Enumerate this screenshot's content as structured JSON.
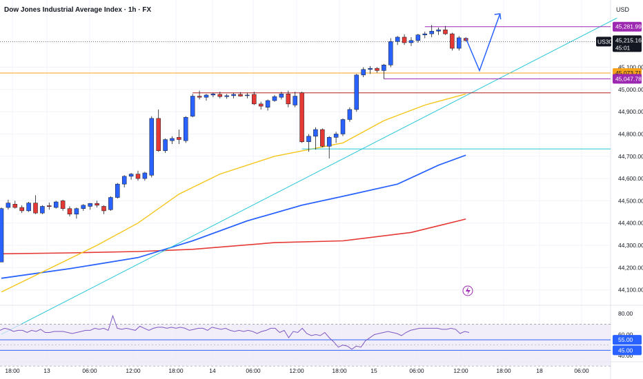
{
  "header": {
    "title": "Dow Jones Industrial Average Index · 1h · FX",
    "currency": "USD"
  },
  "chart_data": {
    "type": "candlestick",
    "y_ticks": [
      "45,100.00",
      "45,000.00",
      "44,900.00",
      "44,800.00",
      "44,700.00",
      "44,600.00",
      "44,500.00",
      "44,400.00",
      "44,300.00",
      "44,200.00",
      "44,100.00"
    ],
    "ylim": [
      44040,
      45340
    ],
    "x_ticks": [
      "18:00",
      "13",
      "06:00",
      "12:00",
      "18:00",
      "14",
      "06:00",
      "12:00",
      "18:00",
      "15",
      "06:00",
      "12:00",
      "18:00",
      "18",
      "06:00"
    ],
    "candles": [
      {
        "o": 44225,
        "h": 44470,
        "l": 44225,
        "c": 44465
      },
      {
        "o": 44470,
        "h": 44505,
        "l": 44460,
        "c": 44490
      },
      {
        "o": 44485,
        "h": 44500,
        "l": 44465,
        "c": 44470
      },
      {
        "o": 44470,
        "h": 44480,
        "l": 44445,
        "c": 44455
      },
      {
        "o": 44455,
        "h": 44495,
        "l": 44450,
        "c": 44490
      },
      {
        "o": 44490,
        "h": 44525,
        "l": 44440,
        "c": 44445
      },
      {
        "o": 44445,
        "h": 44480,
        "l": 44440,
        "c": 44475
      },
      {
        "o": 44478,
        "h": 44492,
        "l": 44460,
        "c": 44474
      },
      {
        "o": 44470,
        "h": 44500,
        "l": 44465,
        "c": 44495
      },
      {
        "o": 44500,
        "h": 44505,
        "l": 44455,
        "c": 44465
      },
      {
        "o": 44465,
        "h": 44475,
        "l": 44430,
        "c": 44440
      },
      {
        "o": 44440,
        "h": 44470,
        "l": 44420,
        "c": 44465
      },
      {
        "o": 44465,
        "h": 44485,
        "l": 44455,
        "c": 44480
      },
      {
        "o": 44475,
        "h": 44490,
        "l": 44460,
        "c": 44488
      },
      {
        "o": 44488,
        "h": 44500,
        "l": 44470,
        "c": 44480
      },
      {
        "o": 44475,
        "h": 44480,
        "l": 44440,
        "c": 44455
      },
      {
        "o": 44460,
        "h": 44520,
        "l": 44455,
        "c": 44515
      },
      {
        "o": 44515,
        "h": 44580,
        "l": 44510,
        "c": 44575
      },
      {
        "o": 44575,
        "h": 44615,
        "l": 44560,
        "c": 44610
      },
      {
        "o": 44610,
        "h": 44625,
        "l": 44595,
        "c": 44620
      },
      {
        "o": 44620,
        "h": 44635,
        "l": 44590,
        "c": 44600
      },
      {
        "o": 44600,
        "h": 44630,
        "l": 44590,
        "c": 44625
      },
      {
        "o": 44615,
        "h": 44880,
        "l": 44605,
        "c": 44870
      },
      {
        "o": 44870,
        "h": 44910,
        "l": 44720,
        "c": 44725
      },
      {
        "o": 44725,
        "h": 44780,
        "l": 44715,
        "c": 44775
      },
      {
        "o": 44770,
        "h": 44790,
        "l": 44755,
        "c": 44780
      },
      {
        "o": 44785,
        "h": 44820,
        "l": 44755,
        "c": 44775
      },
      {
        "o": 44770,
        "h": 44880,
        "l": 44760,
        "c": 44875
      },
      {
        "o": 44880,
        "h": 44980,
        "l": 44875,
        "c": 44970
      },
      {
        "o": 44970,
        "h": 44995,
        "l": 44955,
        "c": 44965
      },
      {
        "o": 44965,
        "h": 44980,
        "l": 44950,
        "c": 44975
      },
      {
        "o": 44975,
        "h": 44985,
        "l": 44965,
        "c": 44980
      },
      {
        "o": 44978,
        "h": 44990,
        "l": 44960,
        "c": 44968
      },
      {
        "o": 44968,
        "h": 44980,
        "l": 44958,
        "c": 44972
      },
      {
        "o": 44972,
        "h": 44985,
        "l": 44960,
        "c": 44978
      },
      {
        "o": 44978,
        "h": 44988,
        "l": 44968,
        "c": 44970
      },
      {
        "o": 44975,
        "h": 44985,
        "l": 44960,
        "c": 44975
      },
      {
        "o": 44978,
        "h": 44990,
        "l": 44930,
        "c": 44935
      },
      {
        "o": 44935,
        "h": 44945,
        "l": 44910,
        "c": 44925
      },
      {
        "o": 44920,
        "h": 44955,
        "l": 44905,
        "c": 44950
      },
      {
        "o": 44950,
        "h": 44975,
        "l": 44945,
        "c": 44968
      },
      {
        "o": 44965,
        "h": 44990,
        "l": 44955,
        "c": 44980
      },
      {
        "o": 44980,
        "h": 44995,
        "l": 44920,
        "c": 44935
      },
      {
        "o": 44930,
        "h": 44990,
        "l": 44920,
        "c": 44970
      },
      {
        "o": 44985,
        "h": 44990,
        "l": 44760,
        "c": 44765
      },
      {
        "o": 44765,
        "h": 44800,
        "l": 44720,
        "c": 44790
      },
      {
        "o": 44790,
        "h": 44830,
        "l": 44730,
        "c": 44820
      },
      {
        "o": 44820,
        "h": 44825,
        "l": 44740,
        "c": 44745
      },
      {
        "o": 44745,
        "h": 44790,
        "l": 44690,
        "c": 44785
      },
      {
        "o": 44785,
        "h": 44810,
        "l": 44760,
        "c": 44800
      },
      {
        "o": 44800,
        "h": 44870,
        "l": 44790,
        "c": 44865
      },
      {
        "o": 44865,
        "h": 44920,
        "l": 44855,
        "c": 44910
      },
      {
        "o": 44910,
        "h": 45070,
        "l": 44900,
        "c": 45065
      },
      {
        "o": 45065,
        "h": 45100,
        "l": 45055,
        "c": 45090
      },
      {
        "o": 45090,
        "h": 45105,
        "l": 45070,
        "c": 45095
      },
      {
        "o": 45095,
        "h": 45100,
        "l": 45075,
        "c": 45085
      },
      {
        "o": 45085,
        "h": 45115,
        "l": 45048,
        "c": 45110
      },
      {
        "o": 45110,
        "h": 45230,
        "l": 45100,
        "c": 45215
      },
      {
        "o": 45215,
        "h": 45240,
        "l": 45200,
        "c": 45235
      },
      {
        "o": 45235,
        "h": 45248,
        "l": 45200,
        "c": 45210
      },
      {
        "o": 45210,
        "h": 45235,
        "l": 45195,
        "c": 45220
      },
      {
        "o": 45220,
        "h": 45250,
        "l": 45210,
        "c": 45245
      },
      {
        "o": 45245,
        "h": 45260,
        "l": 45230,
        "c": 45250
      },
      {
        "o": 45250,
        "h": 45290,
        "l": 45235,
        "c": 45262
      },
      {
        "o": 45262,
        "h": 45278,
        "l": 45245,
        "c": 45268
      },
      {
        "o": 45268,
        "h": 45285,
        "l": 45245,
        "c": 45250
      },
      {
        "o": 45250,
        "h": 45255,
        "l": 45175,
        "c": 45185
      },
      {
        "o": 45185,
        "h": 45240,
        "l": 45175,
        "c": 45232
      },
      {
        "o": 45230,
        "h": 45235,
        "l": 45215,
        "c": 45220
      }
    ],
    "ma_red": [
      [
        0,
        44262
      ],
      [
        10,
        44266
      ],
      [
        20,
        44272
      ],
      [
        28,
        44282
      ],
      [
        40,
        44312
      ],
      [
        50,
        44320
      ],
      [
        60,
        44358
      ],
      [
        68,
        44418
      ]
    ],
    "ma_blue": [
      [
        0,
        44152
      ],
      [
        10,
        44195
      ],
      [
        20,
        44245
      ],
      [
        28,
        44320
      ],
      [
        36,
        44410
      ],
      [
        44,
        44480
      ],
      [
        50,
        44520
      ],
      [
        58,
        44575
      ],
      [
        64,
        44660
      ],
      [
        68,
        44705
      ]
    ],
    "ma_yellow": [
      [
        0,
        44090
      ],
      [
        6,
        44180
      ],
      [
        14,
        44300
      ],
      [
        20,
        44400
      ],
      [
        26,
        44530
      ],
      [
        32,
        44620
      ],
      [
        40,
        44700
      ],
      [
        45,
        44730
      ],
      [
        50,
        44760
      ],
      [
        56,
        44860
      ],
      [
        62,
        44930
      ],
      [
        68,
        44980
      ]
    ],
    "trendline": {
      "from": [
        0,
        43900
      ],
      "to": [
        78,
        45290
      ]
    },
    "h_lines": [
      {
        "value": 45281.99,
        "from": 62,
        "to": 78,
        "color": "#9c27b0"
      },
      {
        "value": 45073.71,
        "from": -2,
        "to": 78,
        "color": "#f7a21b"
      },
      {
        "value": 45047.78,
        "from": 56,
        "to": 78,
        "color": "#9c27b0"
      },
      {
        "value": 44985,
        "from": 28,
        "to": 78,
        "color": "#b71c1c"
      },
      {
        "value": 44733,
        "from": 44,
        "to": 72,
        "color": "#26c6da"
      }
    ],
    "price_labels": [
      {
        "text": "45,281.99",
        "value": 45281.99,
        "bg": "#9c27b0",
        "fg": "#ffffff"
      },
      {
        "text": "45,215.16",
        "value": 45215.16,
        "sub": "45:01",
        "bg": "#131722",
        "fg": "#ffffff",
        "symbol": "US30"
      },
      {
        "text": "45,073.71",
        "value": 45073.71,
        "bg": "#f7a21b",
        "fg": "#131722"
      },
      {
        "text": "45,047.78",
        "value": 45047.78,
        "bg": "#9c27b0",
        "fg": "#ffffff"
      }
    ],
    "projection": [
      [
        68,
        45230
      ],
      [
        70,
        45085
      ],
      [
        73,
        45340
      ]
    ],
    "rsi": {
      "y_ticks": [
        "80.00",
        "60.00",
        "40.00"
      ],
      "ylim": [
        36,
        86
      ],
      "levels": {
        "upper": 70,
        "lower": 30,
        "mid": 50
      },
      "level_labels": [
        {
          "text": "55.00",
          "value": 55
        },
        {
          "text": "45.00",
          "value": 45
        }
      ],
      "values": [
        64,
        66,
        65,
        63,
        64,
        64,
        62,
        64,
        63,
        65,
        62,
        62,
        63,
        63,
        63,
        62,
        61,
        62,
        63,
        64,
        64,
        66,
        65,
        66,
        64,
        78,
        66,
        65,
        66,
        65,
        64,
        68,
        66,
        64,
        66,
        67,
        67,
        66,
        67,
        66,
        67,
        66,
        64,
        65,
        66,
        66,
        64,
        67,
        66,
        65,
        66,
        64,
        63,
        64,
        63,
        64,
        63,
        61,
        63,
        64,
        66,
        66,
        62,
        64,
        57,
        63,
        62,
        66,
        61,
        59,
        60,
        59,
        62,
        57,
        53,
        48,
        50,
        49,
        46,
        49,
        48,
        54,
        57,
        60,
        61,
        62,
        63,
        62,
        61,
        59,
        62,
        64,
        65,
        66,
        66,
        66,
        66,
        66,
        65,
        65,
        66,
        65,
        61,
        63,
        62
      ]
    }
  }
}
